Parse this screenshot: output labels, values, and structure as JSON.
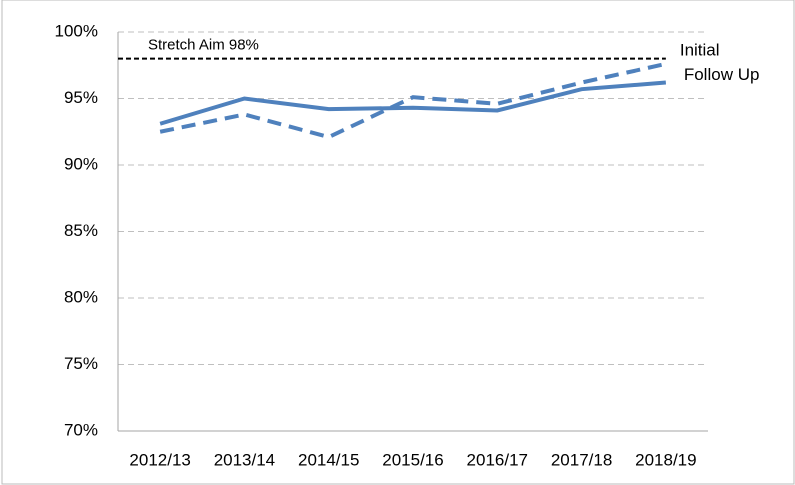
{
  "chart_data": {
    "type": "line",
    "categories": [
      "2012/13",
      "2013/14",
      "2014/15",
      "2015/16",
      "2016/17",
      "2017/18",
      "2018/19"
    ],
    "series": [
      {
        "name": "Initial",
        "color": "#4f81bd",
        "style": "dashed",
        "values": [
          92.5,
          93.8,
          92.1,
          95.1,
          94.6,
          96.2,
          97.6
        ]
      },
      {
        "name": "Follow Up",
        "color": "#4f81bd",
        "style": "solid",
        "values": [
          93.1,
          95.0,
          94.2,
          94.3,
          94.1,
          95.7,
          96.2
        ]
      }
    ],
    "reference_line": {
      "value": 98,
      "label": "Stretch Aim 98%",
      "color": "#000000"
    },
    "ylim": [
      70,
      100
    ],
    "yticks": [
      {
        "value": 70,
        "label": "70%"
      },
      {
        "value": 75,
        "label": "75%"
      },
      {
        "value": 80,
        "label": "80%"
      },
      {
        "value": 85,
        "label": "85%"
      },
      {
        "value": 90,
        "label": "90%"
      },
      {
        "value": 95,
        "label": "95%"
      },
      {
        "value": 100,
        "label": "100%"
      }
    ],
    "grid": true
  }
}
